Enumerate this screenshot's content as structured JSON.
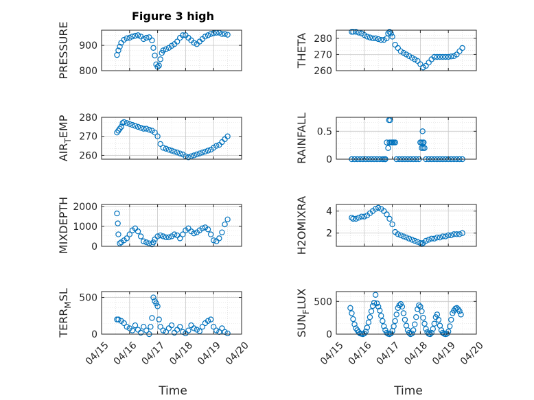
{
  "colors": {
    "marker": "#0072BD",
    "axis": "#262626",
    "grid": "#d9d9d9"
  },
  "chart_data": [
    {
      "type": "scatter",
      "title": "Figure 3 high",
      "ylabel": "PRESSURE",
      "x_range": [
        0,
        5
      ],
      "ylim": [
        800,
        960
      ],
      "yticks": [
        800,
        900
      ],
      "x": [
        0.55,
        0.6,
        0.65,
        0.7,
        0.8,
        0.9,
        1.0,
        1.1,
        1.2,
        1.3,
        1.4,
        1.5,
        1.6,
        1.7,
        1.8,
        1.85,
        1.9,
        1.95,
        2.0,
        2.05,
        2.1,
        2.15,
        2.2,
        2.3,
        2.4,
        2.5,
        2.6,
        2.7,
        2.8,
        2.9,
        3.0,
        3.1,
        3.2,
        3.3,
        3.4,
        3.5,
        3.6,
        3.7,
        3.8,
        3.9,
        4.0,
        4.1,
        4.2,
        4.3,
        4.4,
        4.5
      ],
      "y": [
        862,
        880,
        895,
        910,
        922,
        928,
        930,
        935,
        938,
        940,
        935,
        925,
        930,
        932,
        920,
        890,
        860,
        825,
        815,
        820,
        845,
        870,
        880,
        885,
        890,
        898,
        905,
        915,
        930,
        940,
        940,
        930,
        920,
        910,
        905,
        915,
        925,
        935,
        940,
        945,
        948,
        950,
        950,
        945,
        945,
        942
      ]
    },
    {
      "type": "scatter",
      "ylabel": "THETA",
      "x_range": [
        0,
        5
      ],
      "ylim": [
        260,
        285
      ],
      "yticks": [
        260,
        270,
        280
      ],
      "x": [
        0.55,
        0.6,
        0.7,
        0.8,
        0.9,
        1.0,
        1.1,
        1.2,
        1.3,
        1.4,
        1.5,
        1.6,
        1.7,
        1.8,
        1.85,
        1.9,
        1.95,
        2.0,
        2.1,
        2.2,
        2.3,
        2.4,
        2.5,
        2.6,
        2.7,
        2.8,
        2.9,
        3.0,
        3.1,
        3.2,
        3.3,
        3.4,
        3.5,
        3.6,
        3.7,
        3.8,
        3.9,
        4.0,
        4.1,
        4.2,
        4.3,
        4.4,
        4.5
      ],
      "y": [
        284,
        284,
        284,
        283.5,
        283,
        282,
        281,
        280.5,
        280,
        280,
        279.5,
        279,
        279,
        280,
        283,
        284,
        283,
        281,
        276,
        274,
        272,
        271,
        270,
        269,
        268,
        267,
        266,
        264,
        262,
        263,
        265,
        267,
        268.5,
        268.5,
        268.5,
        268.5,
        268.5,
        268.5,
        268.8,
        269,
        270,
        272,
        274
      ]
    },
    {
      "type": "scatter",
      "ylabel": "AIR_TEMP",
      "x_range": [
        0,
        5
      ],
      "ylim": [
        258,
        280
      ],
      "yticks": [
        260,
        270,
        280
      ],
      "x": [
        0.55,
        0.6,
        0.65,
        0.7,
        0.75,
        0.8,
        0.9,
        1.0,
        1.1,
        1.2,
        1.3,
        1.4,
        1.5,
        1.6,
        1.7,
        1.8,
        1.9,
        2.0,
        2.1,
        2.2,
        2.3,
        2.4,
        2.5,
        2.6,
        2.7,
        2.8,
        2.9,
        3.0,
        3.1,
        3.2,
        3.3,
        3.4,
        3.5,
        3.6,
        3.7,
        3.8,
        3.9,
        4.0,
        4.1,
        4.2,
        4.3,
        4.4,
        4.5
      ],
      "y": [
        272,
        273,
        274,
        275,
        277,
        277.5,
        277,
        276.5,
        276,
        275.5,
        275,
        274.5,
        274,
        274,
        273.5,
        273,
        272,
        270,
        266,
        264,
        263.5,
        263,
        262.5,
        262,
        261.5,
        261,
        260.5,
        259.5,
        259,
        259.5,
        260,
        260.5,
        261,
        261.5,
        262,
        262.5,
        263,
        264,
        265,
        265.5,
        267,
        268.5,
        270
      ]
    },
    {
      "type": "scatter",
      "ylabel": "RAINFALL",
      "x_range": [
        0,
        5
      ],
      "ylim": [
        0,
        0.75
      ],
      "yticks": [
        0,
        0.5
      ],
      "x": [
        0.55,
        0.65,
        0.75,
        0.85,
        0.95,
        1.05,
        1.15,
        1.25,
        1.35,
        1.45,
        1.55,
        1.65,
        1.75,
        1.8,
        1.85,
        1.88,
        1.9,
        1.92,
        1.95,
        1.98,
        2.0,
        2.05,
        2.1,
        2.15,
        2.25,
        2.35,
        2.45,
        2.55,
        2.65,
        2.75,
        2.85,
        2.95,
        3.0,
        3.05,
        3.08,
        3.1,
        3.12,
        3.15,
        3.2,
        3.3,
        3.4,
        3.5,
        3.6,
        3.7,
        3.8,
        3.9,
        4.0,
        4.1,
        4.2,
        4.3,
        4.4,
        4.5,
        1.7,
        1.75,
        2.0,
        2.05,
        2.1,
        3.0,
        3.05,
        3.1
      ],
      "y": [
        0,
        0,
        0,
        0,
        0,
        0,
        0,
        0,
        0,
        0,
        0,
        0,
        0,
        0.3,
        0.2,
        0.7,
        0.3,
        0.7,
        0.3,
        0.3,
        0.3,
        0.3,
        0.3,
        0,
        0,
        0,
        0,
        0,
        0,
        0,
        0,
        0,
        0.3,
        0.2,
        0.5,
        0.3,
        0.3,
        0.2,
        0,
        0,
        0,
        0,
        0,
        0,
        0,
        0,
        0,
        0,
        0,
        0,
        0,
        0,
        0,
        0,
        0.3,
        0.3,
        0.3,
        0.3,
        0.3,
        0.2
      ]
    },
    {
      "type": "scatter",
      "ylabel": "MIXDEPTH",
      "x_range": [
        0,
        5
      ],
      "ylim": [
        0,
        2100
      ],
      "yticks": [
        0,
        1000,
        2000
      ],
      "x": [
        0.55,
        0.58,
        0.6,
        0.65,
        0.7,
        0.8,
        0.9,
        1.0,
        1.1,
        1.2,
        1.3,
        1.4,
        1.5,
        1.6,
        1.7,
        1.8,
        1.85,
        1.9,
        2.0,
        2.1,
        2.2,
        2.3,
        2.4,
        2.5,
        2.6,
        2.7,
        2.8,
        2.9,
        3.0,
        3.1,
        3.2,
        3.3,
        3.4,
        3.5,
        3.6,
        3.7,
        3.8,
        3.9,
        4.0,
        4.1,
        4.2,
        4.3,
        4.4,
        4.5
      ],
      "y": [
        1650,
        1150,
        600,
        150,
        200,
        300,
        400,
        600,
        800,
        900,
        750,
        500,
        250,
        200,
        150,
        100,
        200,
        350,
        500,
        550,
        500,
        450,
        450,
        500,
        600,
        550,
        400,
        600,
        800,
        900,
        750,
        650,
        700,
        800,
        900,
        950,
        850,
        600,
        300,
        250,
        400,
        700,
        1100,
        1350
      ]
    },
    {
      "type": "scatter",
      "ylabel": "H2OMIXRA",
      "x_range": [
        0,
        5
      ],
      "ylim": [
        0.8,
        4.6
      ],
      "yticks": [
        2,
        4
      ],
      "x": [
        0.55,
        0.6,
        0.7,
        0.8,
        0.9,
        1.0,
        1.1,
        1.2,
        1.3,
        1.4,
        1.5,
        1.6,
        1.7,
        1.8,
        1.9,
        2.0,
        2.1,
        2.2,
        2.3,
        2.4,
        2.5,
        2.6,
        2.7,
        2.8,
        2.9,
        3.0,
        3.05,
        3.1,
        3.2,
        3.3,
        3.4,
        3.5,
        3.6,
        3.7,
        3.8,
        3.9,
        4.0,
        4.1,
        4.2,
        4.3,
        4.4,
        4.5
      ],
      "y": [
        3.4,
        3.3,
        3.3,
        3.4,
        3.5,
        3.5,
        3.6,
        3.8,
        4.0,
        4.2,
        4.3,
        4.2,
        4.0,
        3.7,
        3.3,
        2.8,
        2.1,
        1.9,
        1.8,
        1.7,
        1.6,
        1.5,
        1.4,
        1.3,
        1.2,
        1.1,
        1.0,
        1.1,
        1.3,
        1.4,
        1.5,
        1.5,
        1.6,
        1.6,
        1.7,
        1.7,
        1.8,
        1.8,
        1.9,
        1.9,
        1.9,
        2.0
      ]
    },
    {
      "type": "scatter",
      "ylabel": "TERR_MSL",
      "x_range": [
        0,
        5
      ],
      "ylim": [
        0,
        580
      ],
      "yticks": [
        0,
        500
      ],
      "x": [
        0.55,
        0.6,
        0.7,
        0.8,
        0.9,
        1.0,
        1.1,
        1.2,
        1.3,
        1.4,
        1.5,
        1.6,
        1.7,
        1.75,
        1.8,
        1.85,
        1.9,
        1.95,
        2.0,
        2.05,
        2.1,
        2.2,
        2.3,
        2.4,
        2.5,
        2.6,
        2.7,
        2.8,
        2.9,
        3.0,
        3.1,
        3.2,
        3.3,
        3.4,
        3.5,
        3.6,
        3.7,
        3.8,
        3.9,
        4.0,
        4.1,
        4.2,
        4.3,
        4.4,
        4.5
      ],
      "y": [
        200,
        200,
        180,
        150,
        100,
        80,
        50,
        120,
        60,
        20,
        100,
        50,
        0,
        100,
        220,
        500,
        450,
        420,
        380,
        200,
        100,
        50,
        30,
        80,
        120,
        20,
        60,
        100,
        30,
        10,
        50,
        120,
        80,
        60,
        40,
        100,
        150,
        180,
        200,
        100,
        50,
        30,
        80,
        30,
        10
      ]
    },
    {
      "type": "scatter",
      "ylabel": "SUN_FLUX",
      "xlabel": "Time",
      "x_range": [
        0,
        5
      ],
      "ylim": [
        0,
        650
      ],
      "yticks": [
        0,
        500
      ],
      "x": [
        0.5,
        0.55,
        0.6,
        0.65,
        0.7,
        0.75,
        0.8,
        0.85,
        0.9,
        0.95,
        1.0,
        1.05,
        1.1,
        1.15,
        1.2,
        1.25,
        1.3,
        1.35,
        1.4,
        1.45,
        1.5,
        1.55,
        1.6,
        1.65,
        1.7,
        1.75,
        1.8,
        1.85,
        1.9,
        1.95,
        2.0,
        2.05,
        2.1,
        2.15,
        2.2,
        2.25,
        2.3,
        2.35,
        2.4,
        2.45,
        2.5,
        2.55,
        2.6,
        2.65,
        2.7,
        2.75,
        2.8,
        2.85,
        2.9,
        2.95,
        3.0,
        3.05,
        3.1,
        3.15,
        3.2,
        3.25,
        3.3,
        3.35,
        3.4,
        3.45,
        3.5,
        3.55,
        3.6,
        3.65,
        3.7,
        3.75,
        3.8,
        3.85,
        3.9,
        3.95,
        4.0,
        4.05,
        4.1,
        4.15,
        4.2,
        4.25,
        4.3,
        4.35,
        4.4,
        4.45
      ],
      "y": [
        400,
        320,
        230,
        150,
        90,
        60,
        30,
        10,
        5,
        0,
        10,
        40,
        100,
        180,
        260,
        350,
        430,
        480,
        600,
        470,
        420,
        360,
        280,
        200,
        120,
        60,
        20,
        5,
        0,
        10,
        50,
        120,
        200,
        300,
        400,
        440,
        460,
        420,
        320,
        220,
        130,
        60,
        20,
        0,
        10,
        60,
        150,
        260,
        380,
        440,
        420,
        350,
        250,
        160,
        80,
        30,
        5,
        0,
        20,
        80,
        160,
        260,
        300,
        220,
        130,
        60,
        20,
        5,
        0,
        5,
        40,
        120,
        220,
        320,
        360,
        390,
        400,
        380,
        350,
        300
      ]
    }
  ],
  "x_ticklabels": [
    "04/15",
    "04/16",
    "04/17",
    "04/18",
    "04/19",
    "04/20"
  ]
}
